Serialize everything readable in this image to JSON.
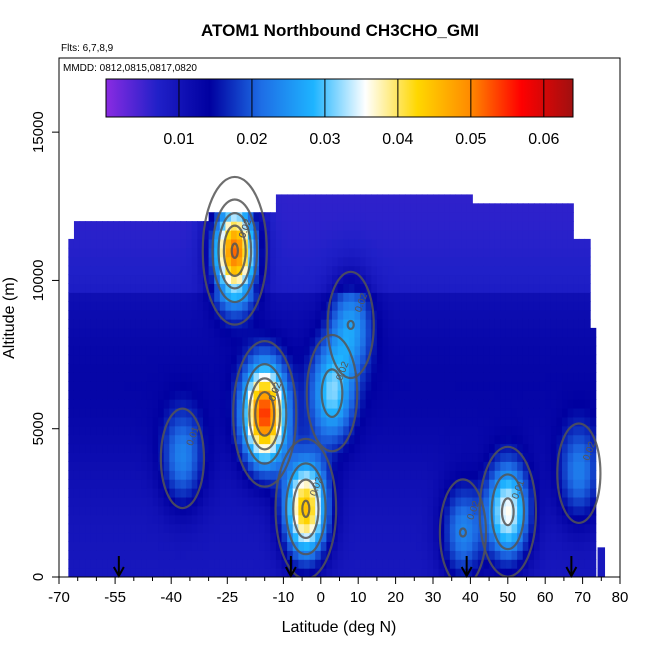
{
  "chart_data": {
    "type": "heatmap",
    "title": "ATOM1 Northbound CH3CHO_GMI",
    "flights_note": "Flts: 6,7,8,9",
    "dates_note": "MMDD: 0812,0815,0817,0820",
    "xlabel": "Latitude (deg N)",
    "ylabel": "Altitude (m)",
    "xlim": [
      -70,
      80
    ],
    "ylim": [
      0,
      17500
    ],
    "x_ticks": [
      -70,
      -55,
      -40,
      -25,
      -10,
      0,
      10,
      20,
      30,
      40,
      50,
      60,
      70,
      80
    ],
    "x_minor_ticks": [
      -65,
      -60,
      -50,
      -45,
      -35,
      -30,
      -20,
      -15,
      -5,
      5,
      15,
      25,
      35,
      45,
      55,
      65,
      75
    ],
    "y_ticks": [
      0,
      5000,
      10000,
      15000
    ],
    "colorbar": {
      "range": [
        0,
        0.064
      ],
      "ticks": [
        0.01,
        0.02,
        0.03,
        0.04,
        0.05,
        0.06
      ],
      "colors": [
        "#8a2be2",
        "#2020c8",
        "#0000a0",
        "#1e6ee6",
        "#1eb4ff",
        "#ffffff",
        "#ffd700",
        "#ff8c00",
        "#ff0000",
        "#a01010"
      ]
    },
    "profile_markers_lat": [
      -54,
      -8,
      39,
      67
    ],
    "concentration_hotspots": [
      {
        "lat": -23,
        "alt": 11000,
        "value": 0.055
      },
      {
        "lat": -15,
        "alt": 5500,
        "value": 0.052
      },
      {
        "lat": -4,
        "alt": 2300,
        "value": 0.045
      },
      {
        "lat": 3,
        "alt": 6200,
        "value": 0.028
      },
      {
        "lat": 8,
        "alt": 8500,
        "value": 0.024
      },
      {
        "lat": 50,
        "alt": 2200,
        "value": 0.036
      },
      {
        "lat": -37,
        "alt": 4000,
        "value": 0.022
      },
      {
        "lat": 38,
        "alt": 1500,
        "value": 0.024
      },
      {
        "lat": 69,
        "alt": 3500,
        "value": 0.022
      }
    ],
    "contour_labels": [
      "0.02",
      "0.02",
      "0.02",
      "0.02",
      "0.02",
      "0.01",
      "0.01",
      "0.02",
      "0.02",
      "0.02",
      "0.02"
    ]
  }
}
